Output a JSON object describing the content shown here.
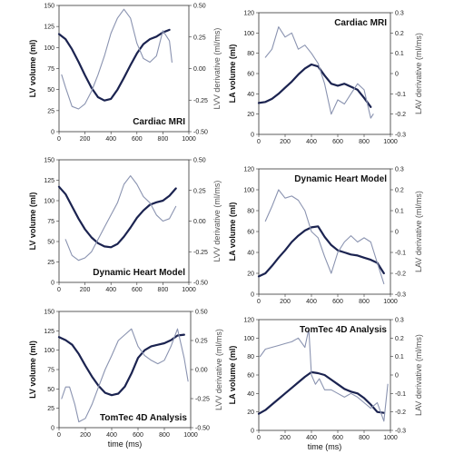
{
  "chart_data": [
    {
      "type": "line",
      "title": "Cardiac MRI",
      "ylabel": "LV volume (ml)",
      "y2label": "LVV derivative (ml/ms)",
      "xlabel": "",
      "xlim": [
        0,
        1000
      ],
      "ylim": [
        0,
        150
      ],
      "y2lim": [
        -0.5,
        0.5
      ],
      "xticks": [
        "0",
        "200",
        "400",
        "600",
        "800",
        "1000"
      ],
      "yticks": [
        "0",
        "25",
        "50",
        "75",
        "100",
        "125",
        "150"
      ],
      "y2ticks": [
        "-0.50",
        "-0.25",
        "0.00",
        "0.25",
        "0.50"
      ],
      "title_position": "bottom-right",
      "colors": {
        "volume": "#1b2350",
        "derivative": "#8a93b0"
      },
      "series": [
        {
          "axis": "left",
          "x": [
            0,
            50,
            100,
            150,
            200,
            250,
            300,
            350,
            400,
            450,
            500,
            550,
            600,
            650,
            700,
            750,
            800,
            850
          ],
          "y": [
            116,
            110,
            98,
            83,
            67,
            52,
            41,
            37,
            39,
            50,
            64,
            79,
            93,
            104,
            110,
            113,
            118,
            121
          ]
        },
        {
          "axis": "right",
          "x": [
            20,
            50,
            100,
            150,
            200,
            250,
            300,
            350,
            400,
            450,
            500,
            550,
            600,
            650,
            700,
            750,
            800,
            850,
            870
          ],
          "y": [
            -0.05,
            -0.15,
            -0.3,
            -0.32,
            -0.28,
            -0.18,
            -0.05,
            0.1,
            0.28,
            0.4,
            0.47,
            0.4,
            0.2,
            0.08,
            0.05,
            0.1,
            0.3,
            0.22,
            0.05
          ]
        }
      ]
    },
    {
      "type": "line",
      "title": "Cardiac MRI",
      "ylabel": "LA volume (ml)",
      "y2label": "LAV derivative (ml/ms)",
      "xlabel": "",
      "xlim": [
        0,
        1000
      ],
      "ylim": [
        0,
        120
      ],
      "y2lim": [
        -0.3,
        0.3
      ],
      "xticks": [
        "0",
        "200",
        "400",
        "600",
        "800",
        "1000"
      ],
      "yticks": [
        "0",
        "20",
        "40",
        "60",
        "80",
        "100",
        "120"
      ],
      "y2ticks": [
        "-0.3",
        "-0.2",
        "-0.1",
        "0",
        "0.1",
        "0.2",
        "0.3"
      ],
      "title_position": "top-right",
      "colors": {
        "volume": "#1b2350",
        "derivative": "#8a93b0"
      },
      "series": [
        {
          "axis": "left",
          "x": [
            0,
            50,
            100,
            150,
            200,
            250,
            300,
            350,
            400,
            450,
            500,
            550,
            600,
            650,
            700,
            750,
            800,
            850
          ],
          "y": [
            31,
            32,
            35,
            40,
            46,
            52,
            59,
            65,
            69,
            67,
            58,
            50,
            48,
            50,
            47,
            44,
            36,
            27
          ]
        },
        {
          "axis": "right",
          "x": [
            50,
            100,
            150,
            200,
            250,
            300,
            350,
            400,
            450,
            500,
            550,
            600,
            650,
            700,
            750,
            800,
            850,
            870
          ],
          "y": [
            0.08,
            0.12,
            0.23,
            0.18,
            0.2,
            0.12,
            0.14,
            0.1,
            0.05,
            -0.05,
            -0.2,
            -0.13,
            -0.15,
            -0.1,
            -0.05,
            -0.08,
            -0.22,
            -0.2
          ]
        }
      ]
    },
    {
      "type": "line",
      "title": "Dynamic Heart Model",
      "ylabel": "LV volume (ml)",
      "y2label": "LVV derivative (ml/ms)",
      "xlabel": "",
      "xlim": [
        0,
        1000
      ],
      "ylim": [
        0,
        150
      ],
      "y2lim": [
        -0.5,
        0.5
      ],
      "xticks": [
        "0",
        "200",
        "400",
        "600",
        "800",
        "1000"
      ],
      "yticks": [
        "0",
        "25",
        "50",
        "75",
        "100",
        "125",
        "150"
      ],
      "y2ticks": [
        "-0.50",
        "-0.25",
        "0.00",
        "0.25",
        "0.50"
      ],
      "title_position": "bottom-right",
      "colors": {
        "volume": "#1b2350",
        "derivative": "#8a93b0"
      },
      "series": [
        {
          "axis": "left",
          "x": [
            0,
            50,
            100,
            150,
            200,
            250,
            300,
            350,
            400,
            450,
            500,
            550,
            600,
            650,
            700,
            750,
            800,
            850,
            900
          ],
          "y": [
            117,
            108,
            93,
            78,
            65,
            55,
            48,
            44,
            43,
            47,
            56,
            67,
            79,
            88,
            95,
            98,
            100,
            106,
            115
          ]
        },
        {
          "axis": "right",
          "x": [
            50,
            100,
            150,
            200,
            250,
            300,
            350,
            400,
            450,
            500,
            550,
            600,
            650,
            700,
            750,
            800,
            850,
            900
          ],
          "y": [
            -0.15,
            -0.28,
            -0.32,
            -0.3,
            -0.25,
            -0.15,
            -0.05,
            0.05,
            0.15,
            0.3,
            0.37,
            0.3,
            0.2,
            0.15,
            0.05,
            0.0,
            0.02,
            0.12
          ]
        }
      ]
    },
    {
      "type": "line",
      "title": "Dynamic Heart Model",
      "ylabel": "LA volume (ml)",
      "y2label": "LAV derivative (ml/ms)",
      "xlabel": "",
      "xlim": [
        0,
        1000
      ],
      "ylim": [
        0,
        120
      ],
      "y2lim": [
        -0.3,
        0.3
      ],
      "xticks": [
        "0",
        "200",
        "400",
        "600",
        "800",
        "1000"
      ],
      "yticks": [
        "0",
        "20",
        "40",
        "60",
        "80",
        "100",
        "120"
      ],
      "y2ticks": [
        "-0.3",
        "-0.2",
        "-0.1",
        "0",
        "0.1",
        "0.2",
        "0.3"
      ],
      "title_position": "top-right",
      "colors": {
        "volume": "#1b2350",
        "derivative": "#8a93b0"
      },
      "series": [
        {
          "axis": "left",
          "x": [
            0,
            50,
            100,
            150,
            200,
            250,
            300,
            350,
            400,
            450,
            500,
            550,
            600,
            650,
            700,
            750,
            800,
            850,
            900,
            950
          ],
          "y": [
            17,
            20,
            27,
            35,
            42,
            50,
            56,
            61,
            64,
            65,
            55,
            47,
            42,
            40,
            38,
            37,
            35,
            33,
            30,
            20
          ]
        },
        {
          "axis": "right",
          "x": [
            50,
            100,
            150,
            200,
            250,
            300,
            350,
            400,
            450,
            500,
            550,
            600,
            650,
            700,
            750,
            800,
            850,
            900,
            950
          ],
          "y": [
            0.05,
            0.12,
            0.2,
            0.16,
            0.17,
            0.15,
            0.1,
            0.0,
            -0.03,
            -0.12,
            -0.2,
            -0.1,
            -0.05,
            -0.02,
            -0.05,
            -0.03,
            -0.05,
            -0.15,
            -0.25
          ]
        }
      ]
    },
    {
      "type": "line",
      "title": "TomTec 4D Analysis",
      "ylabel": "LV volume (ml)",
      "y2label": "LVV derivative (ml/ms)",
      "xlabel": "time (ms)",
      "xlim": [
        0,
        1000
      ],
      "ylim": [
        0,
        150
      ],
      "y2lim": [
        -0.5,
        0.5
      ],
      "xticks": [
        "0",
        "200",
        "400",
        "600",
        "800",
        "1000"
      ],
      "yticks": [
        "0",
        "25",
        "50",
        "75",
        "100",
        "125",
        "150"
      ],
      "y2ticks": [
        "-0.50",
        "-0.25",
        "0.00",
        "0.25",
        "0.50"
      ],
      "title_position": "bottom-right",
      "colors": {
        "volume": "#1b2350",
        "derivative": "#8a93b0"
      },
      "series": [
        {
          "axis": "left",
          "x": [
            0,
            50,
            100,
            150,
            200,
            250,
            300,
            350,
            400,
            450,
            500,
            550,
            600,
            650,
            700,
            750,
            800,
            850,
            900,
            950
          ],
          "y": [
            117,
            113,
            107,
            95,
            80,
            66,
            54,
            45,
            42,
            44,
            53,
            70,
            90,
            100,
            105,
            107,
            109,
            113,
            119,
            120
          ]
        },
        {
          "axis": "right",
          "x": [
            20,
            50,
            80,
            120,
            150,
            200,
            250,
            300,
            350,
            400,
            450,
            500,
            550,
            600,
            650,
            700,
            750,
            800,
            850,
            900,
            950,
            980
          ],
          "y": [
            -0.25,
            -0.15,
            -0.15,
            -0.3,
            -0.45,
            -0.42,
            -0.3,
            -0.15,
            0.0,
            0.12,
            0.25,
            0.3,
            0.35,
            0.2,
            0.12,
            0.08,
            0.05,
            0.08,
            0.2,
            0.35,
            0.1,
            -0.1
          ]
        }
      ]
    },
    {
      "type": "line",
      "title": "TomTec 4D Analysis",
      "ylabel": "LA volume (ml)",
      "y2label": "LAV derivative (ml/ms)",
      "xlabel": "time (ms)",
      "xlim": [
        0,
        1000
      ],
      "ylim": [
        0,
        120
      ],
      "y2lim": [
        -0.3,
        0.3
      ],
      "xticks": [
        "0",
        "200",
        "400",
        "600",
        "800",
        "1000"
      ],
      "yticks": [
        "0",
        "20",
        "40",
        "60",
        "80",
        "100",
        "120"
      ],
      "y2ticks": [
        "-0.3",
        "-0.2",
        "-0.1",
        "0",
        "0.1",
        "0.2",
        "0.3"
      ],
      "title_position": "top-right",
      "colors": {
        "volume": "#1b2350",
        "derivative": "#8a93b0"
      },
      "series": [
        {
          "axis": "left",
          "x": [
            0,
            50,
            100,
            150,
            200,
            250,
            300,
            350,
            400,
            450,
            500,
            550,
            600,
            650,
            700,
            750,
            800,
            850,
            900,
            950
          ],
          "y": [
            18,
            22,
            28,
            34,
            40,
            46,
            52,
            58,
            63,
            62,
            60,
            55,
            50,
            45,
            42,
            40,
            35,
            28,
            20,
            19
          ]
        },
        {
          "axis": "right",
          "x": [
            10,
            50,
            100,
            150,
            200,
            250,
            300,
            350,
            380,
            400,
            430,
            460,
            500,
            550,
            600,
            650,
            700,
            750,
            800,
            850,
            900,
            950,
            980
          ],
          "y": [
            0.1,
            0.14,
            0.15,
            0.16,
            0.17,
            0.18,
            0.2,
            0.15,
            0.25,
            0.0,
            -0.05,
            -0.02,
            -0.08,
            -0.08,
            -0.1,
            -0.12,
            -0.1,
            -0.12,
            -0.15,
            -0.18,
            -0.15,
            -0.25,
            -0.05
          ]
        }
      ]
    }
  ]
}
